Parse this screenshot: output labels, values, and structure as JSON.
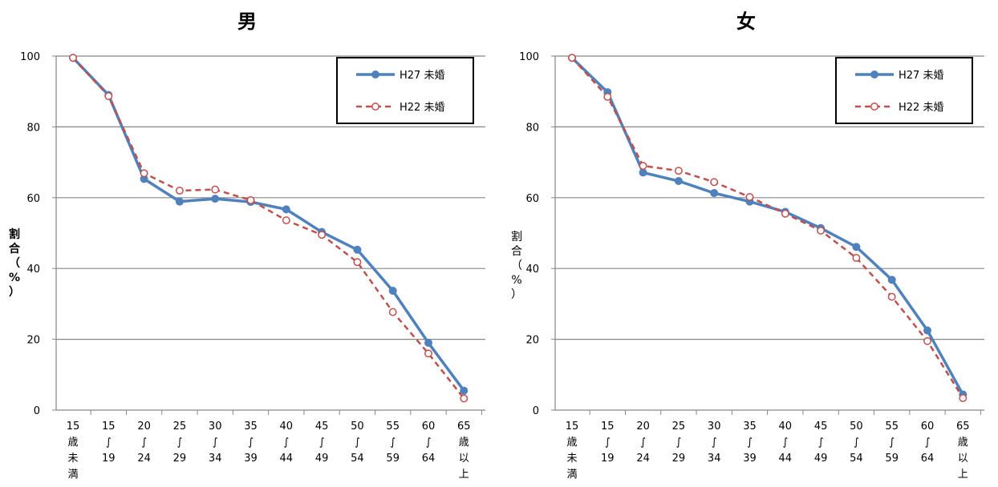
{
  "chart_data": [
    {
      "type": "line",
      "title": "男",
      "ylabel": "割合（%）",
      "ylim": [
        0,
        100
      ],
      "yticks": [
        0,
        20,
        40,
        60,
        80,
        100
      ],
      "categories": [
        [
          "15",
          "歳",
          "未",
          "満"
        ],
        [
          "15",
          "∫",
          "19"
        ],
        [
          "20",
          "∫",
          "24"
        ],
        [
          "25",
          "∫",
          "29"
        ],
        [
          "30",
          "∫",
          "34"
        ],
        [
          "35",
          "∫",
          "39"
        ],
        [
          "40",
          "∫",
          "44"
        ],
        [
          "45",
          "∫",
          "49"
        ],
        [
          "50",
          "∫",
          "54"
        ],
        [
          "55",
          "∫",
          "59"
        ],
        [
          "60",
          "∫",
          "64"
        ],
        [
          "65",
          "歳",
          "以",
          "上"
        ]
      ],
      "series": [
        {
          "name": "H27 未婚",
          "color": "#4F81BD",
          "style": "solid",
          "marker": "filled-circle",
          "values": [
            99.5,
            89.0,
            65.3,
            58.9,
            59.7,
            58.8,
            56.7,
            50.3,
            45.3,
            33.7,
            19.0,
            5.5
          ]
        },
        {
          "name": "H22 未婚",
          "color": "#C0504D",
          "style": "dashed",
          "marker": "open-circle",
          "values": [
            99.5,
            88.7,
            66.9,
            62.0,
            62.3,
            59.3,
            53.6,
            49.5,
            41.8,
            27.7,
            16.0,
            3.3
          ]
        }
      ],
      "legend": "top-right",
      "grid": true
    },
    {
      "type": "line",
      "title": "女",
      "ylabel": "割合（%）",
      "ylim": [
        0,
        100
      ],
      "yticks": [
        0,
        20,
        40,
        60,
        80,
        100
      ],
      "categories": [
        [
          "15",
          "歳",
          "未",
          "満"
        ],
        [
          "15",
          "∫",
          "19"
        ],
        [
          "20",
          "∫",
          "24"
        ],
        [
          "25",
          "∫",
          "29"
        ],
        [
          "30",
          "∫",
          "34"
        ],
        [
          "35",
          "∫",
          "39"
        ],
        [
          "40",
          "∫",
          "44"
        ],
        [
          "45",
          "∫",
          "49"
        ],
        [
          "50",
          "∫",
          "54"
        ],
        [
          "55",
          "∫",
          "59"
        ],
        [
          "60",
          "∫",
          "64"
        ],
        [
          "65",
          "歳",
          "以",
          "上"
        ]
      ],
      "series": [
        {
          "name": "H27 未婚",
          "color": "#4F81BD",
          "style": "solid",
          "marker": "filled-circle",
          "values": [
            99.5,
            89.8,
            67.1,
            64.7,
            61.3,
            58.9,
            56.0,
            51.4,
            46.1,
            36.8,
            22.5,
            4.4
          ]
        },
        {
          "name": "H22 未婚",
          "color": "#C0504D",
          "style": "dashed",
          "marker": "open-circle",
          "values": [
            99.5,
            88.5,
            69.0,
            67.6,
            64.4,
            60.2,
            55.5,
            50.7,
            43.0,
            32.0,
            19.5,
            3.4
          ]
        }
      ],
      "legend": "top-right",
      "grid": true
    }
  ]
}
